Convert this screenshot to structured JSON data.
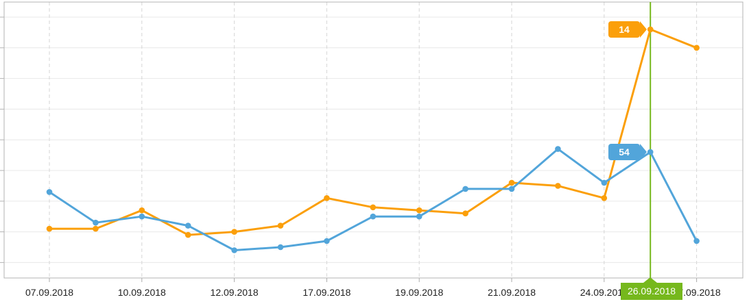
{
  "chart_data": {
    "type": "line",
    "title": "",
    "legend": "none",
    "x_axis": {
      "num_points": 15,
      "tick_labels": [
        {
          "index": 0,
          "label": "07.09.2018"
        },
        {
          "index": 2,
          "label": "10.09.2018"
        },
        {
          "index": 4,
          "label": "12.09.2018"
        },
        {
          "index": 6,
          "label": "17.09.2018"
        },
        {
          "index": 8,
          "label": "19.09.2018"
        },
        {
          "index": 10,
          "label": "21.09.2018"
        },
        {
          "index": 12,
          "label": "24.09.2018"
        },
        {
          "index": 13,
          "label": "26.09.2018",
          "selected": true
        },
        {
          "index": 14,
          "label": "27.09.2018"
        }
      ],
      "gridline_indices": [
        0,
        2,
        4,
        6,
        8,
        10,
        12,
        14
      ],
      "gridline_style": "dashed"
    },
    "y_axis": {
      "inverted": true,
      "labels_shown": false,
      "gridline_min": 10,
      "gridline_max": 90,
      "gridline_step": 10,
      "gridline_style": "solid"
    },
    "series": [
      {
        "name": "orange-series",
        "color": "#FB9F0A",
        "values": [
          79,
          79,
          73,
          81,
          80,
          78,
          69,
          72,
          73,
          74,
          64,
          65,
          69,
          14,
          20
        ],
        "badge": {
          "value": "14",
          "index": 13
        }
      },
      {
        "name": "blue-series",
        "color": "#52A5DA",
        "values": [
          67,
          77,
          75,
          78,
          86,
          85,
          83,
          75,
          75,
          66,
          66,
          53,
          64,
          54,
          83
        ],
        "badge": {
          "value": "54",
          "index": 13
        }
      }
    ],
    "selected_date": {
      "label": "26.09.2018",
      "index": 13,
      "color": "#76B81D"
    },
    "colors": {
      "frame": "#B3B3B3",
      "h_gridline": "#E8E8E8",
      "v_gridline": "#D6D6D6",
      "tick": "#AAAAAA",
      "tick_label_text": "#1F1F1F"
    }
  }
}
